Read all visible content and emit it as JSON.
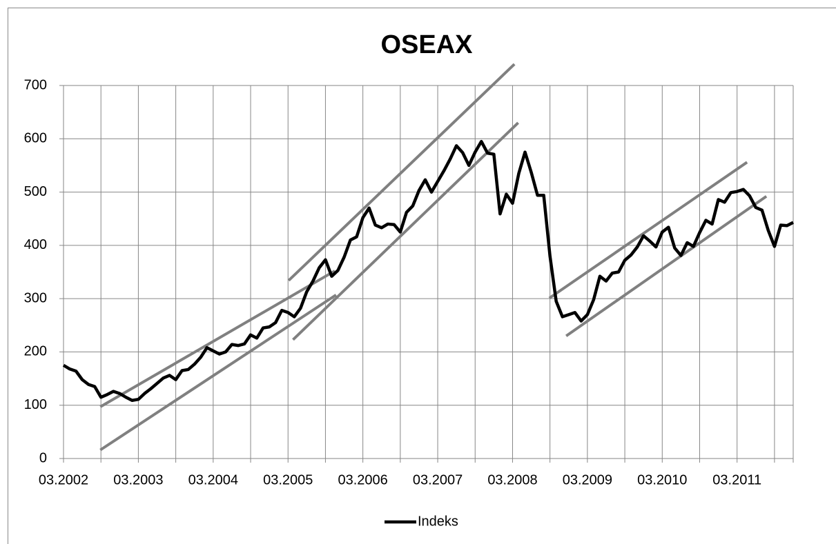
{
  "chart_data": {
    "type": "line",
    "title": "OSEAX",
    "categories": [
      "03.2002",
      null,
      null,
      null,
      null,
      null,
      null,
      null,
      null,
      null,
      null,
      null,
      "03.2003",
      null,
      null,
      null,
      null,
      null,
      null,
      null,
      null,
      null,
      null,
      null,
      "03.2004",
      null,
      null,
      null,
      null,
      null,
      null,
      null,
      null,
      null,
      null,
      null,
      "03.2005",
      null,
      null,
      null,
      null,
      null,
      null,
      null,
      null,
      null,
      null,
      null,
      "03.2006",
      null,
      null,
      null,
      null,
      null,
      null,
      null,
      null,
      null,
      null,
      null,
      "03.2007",
      null,
      null,
      null,
      null,
      null,
      null,
      null,
      null,
      null,
      null,
      null,
      "03.2008",
      null,
      null,
      null,
      null,
      null,
      null,
      null,
      null,
      null,
      null,
      null,
      "03.2009",
      null,
      null,
      null,
      null,
      null,
      null,
      null,
      null,
      null,
      null,
      null,
      "03.2010",
      null,
      null,
      null,
      null,
      null,
      null,
      null,
      null,
      null,
      null,
      null,
      "03.2011",
      null,
      null,
      null,
      null,
      null,
      null,
      null,
      null,
      null
    ],
    "series": [
      {
        "name": "Indeks",
        "color": "#000000",
        "values": [
          175,
          168,
          164,
          148,
          139,
          135,
          115,
          120,
          126,
          122,
          115,
          109,
          111,
          122,
          131,
          141,
          151,
          156,
          148,
          165,
          167,
          177,
          190,
          208,
          202,
          196,
          200,
          214,
          212,
          215,
          232,
          226,
          245,
          247,
          255,
          278,
          274,
          266,
          282,
          313,
          333,
          358,
          373,
          342,
          353,
          378,
          410,
          416,
          452,
          470,
          438,
          433,
          440,
          439,
          425,
          462,
          474,
          503,
          523,
          500,
          520,
          540,
          562,
          587,
          574,
          550,
          575,
          595,
          573,
          571,
          459,
          496,
          479,
          535,
          575,
          537,
          494,
          494,
          380,
          295,
          266,
          270,
          274,
          258,
          270,
          298,
          342,
          333,
          348,
          350,
          372,
          382,
          397,
          418,
          408,
          397,
          425,
          434,
          395,
          381,
          405,
          398,
          424,
          447,
          440,
          486,
          481,
          499,
          501,
          505,
          493,
          471,
          466,
          428,
          398,
          438,
          437,
          443
        ]
      }
    ],
    "trend_lines": [
      {
        "x": [
          5.9,
          43.5
        ],
        "y": [
          97,
          352
        ],
        "color": "#808080"
      },
      {
        "x": [
          5.9,
          43.7
        ],
        "y": [
          16,
          307
        ],
        "color": "#808080"
      },
      {
        "x": [
          36.1,
          72.3
        ],
        "y": [
          334,
          740
        ],
        "color": "#808080"
      },
      {
        "x": [
          36.8,
          72.9
        ],
        "y": [
          223,
          630
        ],
        "color": "#808080"
      },
      {
        "x": [
          77.9,
          109.6
        ],
        "y": [
          301,
          556
        ],
        "color": "#808080"
      },
      {
        "x": [
          80.6,
          112.7
        ],
        "y": [
          230,
          492
        ],
        "color": "#808080"
      }
    ],
    "ylim": [
      0,
      700
    ],
    "yticks": [
      0,
      100,
      200,
      300,
      400,
      500,
      600,
      700
    ],
    "grid": true,
    "legend": "bottom"
  }
}
